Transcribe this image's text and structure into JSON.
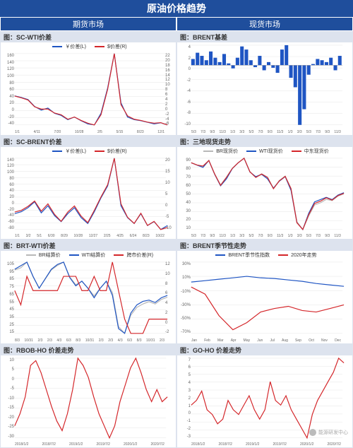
{
  "main_title": "原油价格趋势",
  "col_left": "期货市场",
  "col_right": "现货市场",
  "colors": {
    "blue": "#1f55c3",
    "red": "#d4262a",
    "gray": "#b8b8b8",
    "grid": "#e6e6e6",
    "panel_header": "#dde3ee"
  },
  "watermark": "能源研发中心",
  "panels": [
    {
      "title": "图：SC-WTI价差",
      "legend": [
        {
          "label": "￥价差(L)",
          "color": "#1f55c3"
        },
        {
          "label": "$价差(R)",
          "color": "#d4262a"
        }
      ],
      "y_left": [
        "160",
        "140",
        "120",
        "100",
        "80",
        "60",
        "40",
        "20",
        "0",
        "-20",
        "-40"
      ],
      "y_right": [
        "22",
        "20",
        "18",
        "16",
        "14",
        "12",
        "10",
        "8",
        "6",
        "4",
        "2",
        "0",
        "-2",
        "-4",
        "-6"
      ],
      "x_labels": [
        "1/1",
        "4/11",
        "7/20",
        "10/28",
        "2/5",
        "5/15",
        "8/23",
        "12/1"
      ],
      "series": [
        {
          "color": "#1f55c3",
          "data": [
            75,
            72,
            68,
            55,
            48,
            52,
            42,
            38,
            30,
            35,
            28,
            22,
            20,
            42,
            90,
            155,
            62,
            35,
            30,
            28,
            25,
            22,
            24,
            20
          ]
        },
        {
          "color": "#d4262a",
          "data": [
            73,
            70,
            66,
            54,
            50,
            50,
            43,
            40,
            32,
            36,
            30,
            25,
            22,
            40,
            85,
            148,
            58,
            38,
            32,
            30,
            27,
            25,
            26,
            22
          ]
        }
      ]
    },
    {
      "title": "图：BRENT基差",
      "legend": [],
      "y_left": [
        "4",
        "2",
        "0",
        "-2",
        "-4",
        "-6",
        "-8",
        "-10"
      ],
      "y_right": [],
      "x_labels": [
        "5/3",
        "7/3",
        "9/3",
        "11/3",
        "1/3",
        "3/3",
        "5/3",
        "7/3",
        "9/3",
        "11/3",
        "1/3",
        "3/3",
        "5/3",
        "7/3",
        "9/3",
        "11/3"
      ],
      "series": [
        {
          "color": "#1f55c3",
          "type": "bar",
          "data": [
            1,
            2,
            1.5,
            0.8,
            2.2,
            1.2,
            0.5,
            1.8,
            0.3,
            -0.5,
            1.2,
            3,
            2.5,
            0.8,
            -0.3,
            1.5,
            -0.8,
            0.5,
            -0.4,
            -1.2,
            2.5,
            3.2,
            -2,
            -3.5,
            -9.5,
            -7,
            -1.5,
            0.2,
            1,
            0.8,
            0.5,
            1.2,
            -0.8,
            1.5
          ]
        }
      ]
    },
    {
      "title": "图：SC-BRENT价差",
      "legend": [
        {
          "label": "￥价差(L)",
          "color": "#1f55c3"
        },
        {
          "label": "$价差(R)",
          "color": "#d4262a"
        }
      ],
      "y_left": [
        "140",
        "120",
        "100",
        "80",
        "60",
        "40",
        "20",
        "0",
        "-20",
        "-40",
        "-60",
        "-80"
      ],
      "y_right": [
        "20",
        "15",
        "10",
        "5",
        "0",
        "-5",
        "-10"
      ],
      "x_labels": [
        "1/1",
        "3/2",
        "5/1",
        "6/30",
        "8/29",
        "10/28",
        "12/27",
        "2/25",
        "4/25",
        "6/24",
        "8/23",
        "10/22"
      ],
      "series": [
        {
          "color": "#1f55c3",
          "data": [
            -10,
            -5,
            5,
            20,
            -8,
            10,
            -15,
            -30,
            -10,
            5,
            -20,
            -35,
            -5,
            30,
            60,
            130,
            10,
            -20,
            -35,
            -10,
            -40,
            -30,
            -50,
            -40
          ]
        },
        {
          "color": "#d4262a",
          "data": [
            -12,
            -8,
            2,
            15,
            -10,
            8,
            -18,
            -35,
            -12,
            3,
            -22,
            -38,
            -8,
            25,
            55,
            120,
            8,
            -25,
            -40,
            -15,
            -45,
            -35,
            -55,
            -50
          ]
        }
      ]
    },
    {
      "title": "图：三地现货走势",
      "legend": [
        {
          "label": "BR现货价",
          "color": "#b8b8b8"
        },
        {
          "label": "WTI现货价",
          "color": "#1f55c3"
        },
        {
          "label": "中东现货价",
          "color": "#d4262a"
        }
      ],
      "y_left": [
        "90",
        "80",
        "70",
        "60",
        "50",
        "40",
        "30",
        "20",
        "10"
      ],
      "y_right": [],
      "x_labels": [
        "5/3",
        "7/3",
        "9/3",
        "11/3",
        "1/3",
        "3/3",
        "5/3",
        "7/3",
        "9/3",
        "11/3",
        "1/3",
        "3/3",
        "5/3",
        "7/3",
        "9/3",
        "11/3"
      ],
      "series": [
        {
          "color": "#b8b8b8",
          "data": [
            78,
            76,
            75,
            80,
            68,
            58,
            65,
            73,
            78,
            82,
            70,
            65,
            68,
            65,
            55,
            62,
            66,
            55,
            25,
            18,
            30,
            40,
            42,
            45,
            44,
            48,
            50
          ]
        },
        {
          "color": "#1f55c3",
          "data": [
            72,
            70,
            68,
            74,
            62,
            52,
            58,
            67,
            72,
            76,
            64,
            60,
            62,
            58,
            50,
            56,
            60,
            48,
            20,
            14,
            28,
            38,
            40,
            42,
            40,
            44,
            46
          ]
        },
        {
          "color": "#d4262a",
          "data": [
            75,
            73,
            72,
            77,
            65,
            55,
            62,
            70,
            75,
            79,
            67,
            62,
            65,
            62,
            52,
            59,
            63,
            52,
            22,
            16,
            29,
            39,
            41,
            44,
            42,
            46,
            48
          ]
        }
      ]
    },
    {
      "title": "图：BRT-WTI价差",
      "legend": [
        {
          "label": "BR结算价",
          "color": "#b8b8b8"
        },
        {
          "label": "WTI结算价",
          "color": "#1f55c3"
        },
        {
          "label": "跨市价差(R)",
          "color": "#d4262a"
        }
      ],
      "y_left": [
        "105",
        "95",
        "85",
        "75",
        "65",
        "55",
        "45",
        "35",
        "25",
        "15"
      ],
      "y_right": [
        "12",
        "10",
        "8",
        "6",
        "4",
        "2",
        "0",
        "-2"
      ],
      "x_labels": [
        "8/3",
        "10/31",
        "2/3",
        "2/3",
        "4/3",
        "6/3",
        "8/3",
        "10/31",
        "2/3",
        "2/3",
        "4/3",
        "6/3",
        "8/3",
        "10/31",
        "2/3"
      ],
      "series": [
        {
          "color": "#b8b8b8",
          "data": [
            78,
            80,
            85,
            72,
            62,
            70,
            78,
            82,
            85,
            72,
            65,
            68,
            62,
            55,
            62,
            68,
            58,
            28,
            22,
            38,
            45,
            48,
            50,
            48,
            52,
            54
          ]
        },
        {
          "color": "#1f55c3",
          "data": [
            72,
            75,
            78,
            66,
            56,
            64,
            72,
            76,
            78,
            65,
            58,
            62,
            56,
            48,
            56,
            62,
            50,
            22,
            18,
            35,
            42,
            45,
            46,
            44,
            48,
            50
          ]
        },
        {
          "color": "#d4262a",
          "data": [
            6,
            5,
            7,
            6,
            6,
            6,
            6,
            6,
            7,
            7,
            7,
            6,
            6,
            7,
            6,
            6,
            8,
            6,
            4,
            3,
            3,
            3,
            4,
            4,
            4,
            4
          ]
        }
      ]
    },
    {
      "title": "图：BRENT季节性走势",
      "legend": [
        {
          "label": "BRENT季节性指数",
          "color": "#1f55c3"
        },
        {
          "label": "2020年走势",
          "color": "#d4262a"
        }
      ],
      "y_left": [
        "30%",
        "10%",
        "-10%",
        "-30%",
        "-50%",
        "-70%"
      ],
      "y_right": [],
      "x_labels": [
        "Jan",
        "Feb",
        "Mar",
        "Apr",
        "May",
        "Jun",
        "Jul",
        "Aug",
        "Sep",
        "Oct",
        "Nov",
        "Dec"
      ],
      "series": [
        {
          "color": "#1f55c3",
          "data": [
            2,
            4,
            6,
            8,
            10,
            8,
            7,
            5,
            3,
            0,
            -2,
            -4
          ]
        },
        {
          "color": "#d4262a",
          "data": [
            -5,
            -15,
            -45,
            -65,
            -55,
            -40,
            -35,
            -32,
            -38,
            -40,
            -35,
            -30
          ]
        }
      ],
      "y_domain": [
        -70,
        30
      ]
    },
    {
      "title": "图：RBOB-HO  价差走势",
      "legend": [],
      "y_left": [
        "10",
        "5",
        "0",
        "-5",
        "-10",
        "-15",
        "-20",
        "-25",
        "-30"
      ],
      "y_right": [],
      "x_labels": [
        "2018/1/2",
        "2018/7/2",
        "2019/1/2",
        "2019/7/2",
        "2020/1/2",
        "2020/7/2"
      ],
      "series": [
        {
          "color": "#d4262a",
          "data": [
            -20,
            -15,
            -8,
            5,
            7,
            2,
            -5,
            -12,
            -18,
            -22,
            -15,
            -5,
            8,
            5,
            0,
            -8,
            -15,
            -20,
            -25,
            -20,
            -10,
            -3,
            4,
            8,
            2,
            -5,
            -10,
            -5,
            -10,
            -8
          ]
        }
      ]
    },
    {
      "title": "图：GO-HO  价差走势",
      "legend": [],
      "y_left": [
        "7",
        "6",
        "5",
        "4",
        "3",
        "2",
        "1",
        "0",
        "-1",
        "-2",
        "-3"
      ],
      "y_right": [],
      "x_labels": [
        "2018/1/2",
        "2018/7/2",
        "2019/1/2",
        "2019/7/2",
        "2020/1/2",
        "2020/7/2"
      ],
      "series": [
        {
          "color": "#d4262a",
          "data": [
            1.5,
            2,
            3,
            1,
            0.5,
            -0.5,
            0,
            2,
            1,
            0.5,
            1.5,
            2.5,
            1,
            0,
            1,
            4,
            2,
            1.5,
            2.5,
            1,
            0,
            -1,
            -2,
            0.5,
            2,
            3,
            4,
            5,
            6.5,
            6
          ]
        }
      ]
    }
  ]
}
